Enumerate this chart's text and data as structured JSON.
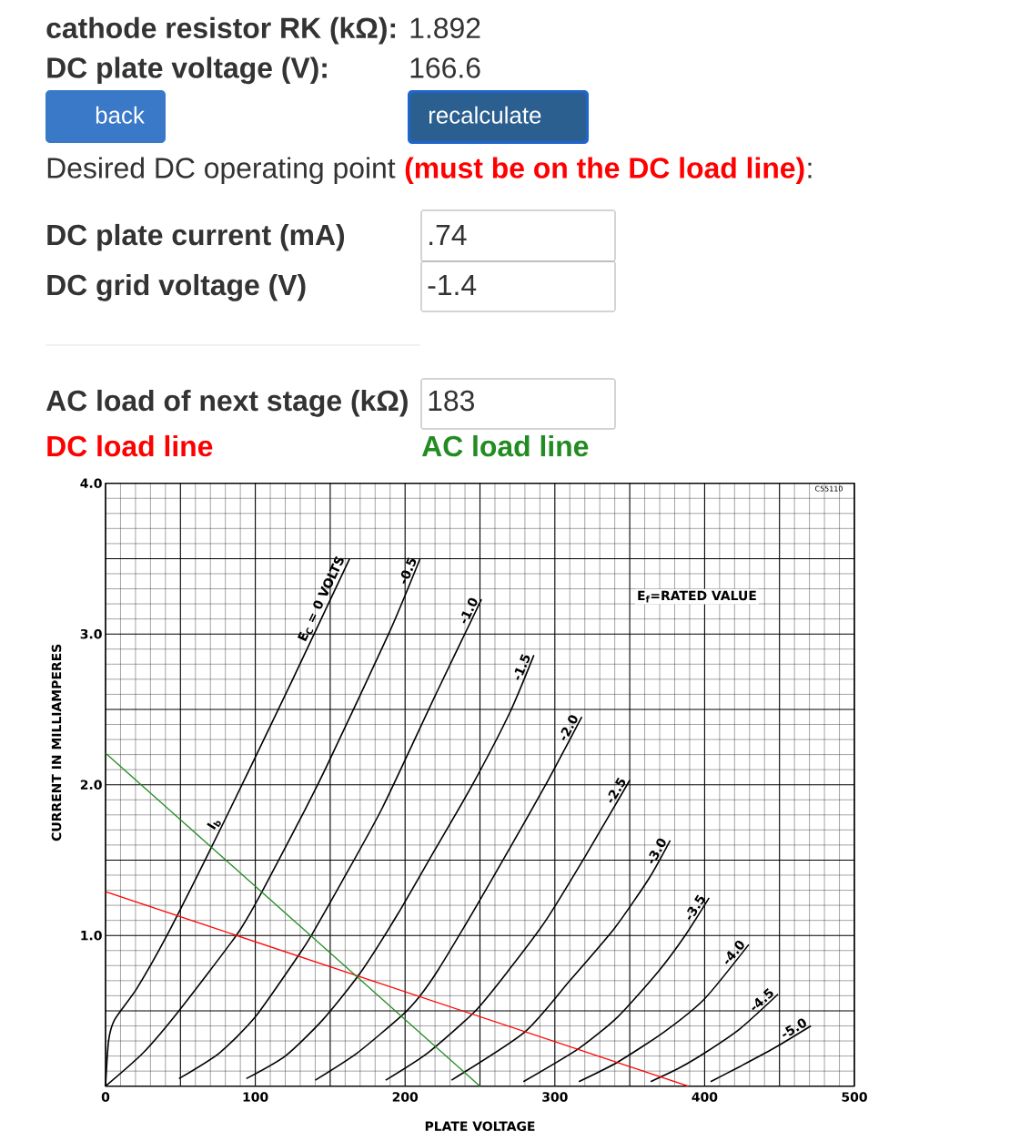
{
  "chart_data": {
    "type": "line",
    "xlabel": "PLATE VOLTAGE",
    "ylabel": "CURRENT IN MILLIAMPERES",
    "xlim": [
      0,
      500
    ],
    "ylim": [
      0,
      4
    ],
    "xticks": [
      0,
      {
        "value": 50,
        "label": null
      },
      100,
      {
        "value": 150,
        "label": null
      },
      200,
      {
        "value": 250,
        "label": null
      },
      300,
      {
        "value": 350,
        "label": null
      },
      400,
      {
        "value": 450,
        "label": null
      },
      500
    ],
    "yticks": [
      {
        "value": 0,
        "label": null
      },
      {
        "value": 0.5,
        "label": null
      },
      {
        "value": 1,
        "label": "1.0"
      },
      {
        "value": 1.5,
        "label": null
      },
      {
        "value": 2,
        "label": "2.0"
      },
      {
        "value": 2.5,
        "label": null
      },
      {
        "value": 3,
        "label": "3.0"
      },
      {
        "value": 3.5,
        "label": null
      },
      {
        "value": 4,
        "label": "4.0"
      }
    ],
    "grid": true,
    "series": [
      {
        "name": "E$_{C}$ = 0 VOLTS",
        "color": "#000000",
        "x": [
          0,
          2,
          6,
          21,
          41,
          68,
          96,
          125,
          163
        ],
        "values": [
          0,
          0.3,
          0.44,
          0.65,
          1.0,
          1.53,
          2.1,
          2.7,
          3.5
        ]
      },
      {
        "name": "-0.5",
        "color": "#000000",
        "x": [
          0,
          25,
          49,
          88,
          104.5,
          134,
          148,
          189,
          210
        ],
        "values": [
          0,
          0.22,
          0.5,
          1.01,
          1.29,
          1.85,
          2.13,
          3.0,
          3.5
        ]
      },
      {
        "name": "-1.0",
        "color": "#000000",
        "x": [
          49,
          76,
          100,
          129,
          138,
          158,
          185,
          221,
          251
        ],
        "values": [
          0.05,
          0.22,
          0.46,
          0.87,
          1.01,
          1.36,
          1.85,
          2.61,
          3.23
        ]
      },
      {
        "name": "-1.5",
        "color": "#000000",
        "x": [
          94,
          120,
          145,
          170,
          195,
          220,
          245,
          270,
          286
        ],
        "values": [
          0.05,
          0.2,
          0.44,
          0.75,
          1.14,
          1.57,
          2.0,
          2.48,
          2.86
        ]
      },
      {
        "name": "-2.0",
        "color": "#000000",
        "x": [
          140,
          168,
          198,
          210,
          222,
          245,
          270,
          295,
          318
        ],
        "values": [
          0.04,
          0.22,
          0.47,
          0.6,
          0.77,
          1.15,
          1.58,
          2.02,
          2.45
        ]
      },
      {
        "name": "-2.5",
        "color": "#000000",
        "x": [
          187,
          215,
          247,
          270,
          294,
          320,
          350
        ],
        "values": [
          0.04,
          0.22,
          0.5,
          0.78,
          1.1,
          1.52,
          2.03
        ]
      },
      {
        "name": "-3.0",
        "color": "#000000",
        "x": [
          231,
          280,
          310,
          340,
          363,
          377
        ],
        "values": [
          0.04,
          0.36,
          0.7,
          1.05,
          1.38,
          1.63
        ]
      },
      {
        "name": "-3.5",
        "color": "#000000",
        "x": [
          279,
          316,
          342,
          369,
          387,
          403
        ],
        "values": [
          0.03,
          0.25,
          0.46,
          0.76,
          1.0,
          1.25
        ]
      },
      {
        "name": "-4.0",
        "color": "#000000",
        "x": [
          316,
          342,
          373,
          400,
          429.5
        ],
        "values": [
          0.03,
          0.16,
          0.36,
          0.58,
          0.94
        ]
      },
      {
        "name": "-4.5",
        "color": "#000000",
        "x": [
          364,
          383,
          400,
          423.5,
          449
        ],
        "values": [
          0.03,
          0.12,
          0.22,
          0.38,
          0.61
        ]
      },
      {
        "name": "-5.0",
        "color": "#000000",
        "x": [
          404,
          423.5,
          446,
          471
        ],
        "values": [
          0.03,
          0.13,
          0.25,
          0.4
        ]
      },
      {
        "name": "DC load line",
        "color": "#ff0000",
        "x": [
          0,
          389
        ],
        "values": [
          1.29,
          0
        ]
      },
      {
        "name": "AC load line",
        "color": "#228b22",
        "x": [
          0,
          250
        ],
        "values": [
          2.21,
          0
        ]
      }
    ],
    "annotations": [
      "cathode resistor RK (kΩ):",
      "1.892",
      "DC plate voltage (V):",
      "166.6",
      "back",
      "recalculate",
      "Desired DC operating point",
      "(must be on the DC load line)",
      ":",
      "DC plate current (mA)",
      ".74",
      "DC grid voltage (V)",
      "-1.4",
      "AC load of next stage (kΩ)",
      "183",
      "I$_{b}$",
      "E$_{f}$=RATED VALUE",
      "C55110"
    ]
  }
}
